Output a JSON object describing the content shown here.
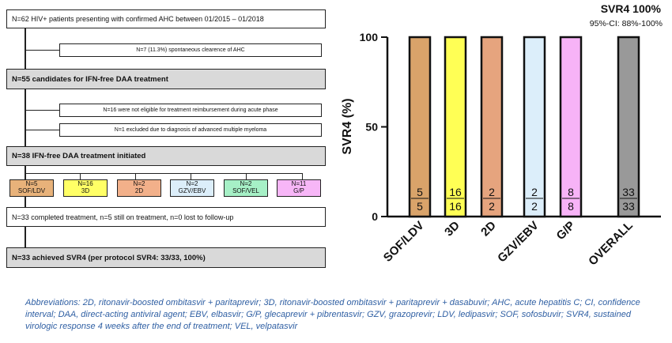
{
  "flowchart": {
    "box1": "N=62 HIV+ patients presenting with confirmed AHC between 01/2015 – 01/2018",
    "box1_side": "N=7 (11.3%) spontaneous clearence of AHC",
    "box2": "N=55 candidates for IFN-free DAA treatment",
    "box2_side1": "N=16 were not eligible for treatment reimbursement during acute phase",
    "box2_side2": "N=1 excluded due to diagnosis of advanced multiple myeloma",
    "box3": "N=38 IFN-free DAA treatment initiated",
    "regimens": [
      {
        "n": "N=5",
        "name": "SOF/LDV",
        "color": "#e8b27a"
      },
      {
        "n": "N=16",
        "name": "3D",
        "color": "#ffff66"
      },
      {
        "n": "N=2",
        "name": "2D",
        "color": "#f2b08a"
      },
      {
        "n": "N=2",
        "name": "GZV/EBV",
        "color": "#dceefa"
      },
      {
        "n": "N=2",
        "name": "SOF/VEL",
        "color": "#a6f0c6"
      },
      {
        "n": "N=11",
        "name": "G/P",
        "color": "#f7b6f7"
      }
    ],
    "box4": "N=33 completed treatment, n=5 still on treatment, n=0 lost to follow-up",
    "box5": "N=33 achieved SVR4 (per protocol SVR4: 33/33, 100%)"
  },
  "chart_data": {
    "type": "bar",
    "title": "SVR4 100%",
    "subtitle": "95%-CI: 88%-100%",
    "ylabel": "SVR4  (%)",
    "xlabel": "",
    "ylim": [
      0,
      100
    ],
    "yticks": [
      0,
      50,
      100
    ],
    "grid": false,
    "categories": [
      "SOF/LDV",
      "3D",
      "2D",
      "GZV/EBV",
      "G/P",
      "OVERALL"
    ],
    "values": [
      100,
      100,
      100,
      100,
      100,
      100
    ],
    "fractions": [
      {
        "num": "5",
        "den": "5"
      },
      {
        "num": "16",
        "den": "16"
      },
      {
        "num": "2",
        "den": "2"
      },
      {
        "num": "2",
        "den": "2"
      },
      {
        "num": "8",
        "den": "8"
      },
      {
        "num": "33",
        "den": "33"
      }
    ],
    "colors": [
      "#d9a36a",
      "#ffff55",
      "#e6a47e",
      "#dceefa",
      "#f7b3f7",
      "#999999"
    ]
  },
  "footnote": "Abbreviations: 2D, ritonavir-boosted ombitasvir + paritaprevir; 3D, ritonavir-boosted ombitasvir + paritaprevir + dasabuvir; AHC, acute hepatitis C; CI, confidence interval; DAA, direct-acting antiviral agent; EBV, elbasvir; G/P, glecaprevir + pibrentasvir; GZV, grazoprevir; LDV, ledipasvir; SOF, sofosbuvir; SVR4, sustained virologic response 4 weeks after the end of treatment; VEL, velpatasvir"
}
